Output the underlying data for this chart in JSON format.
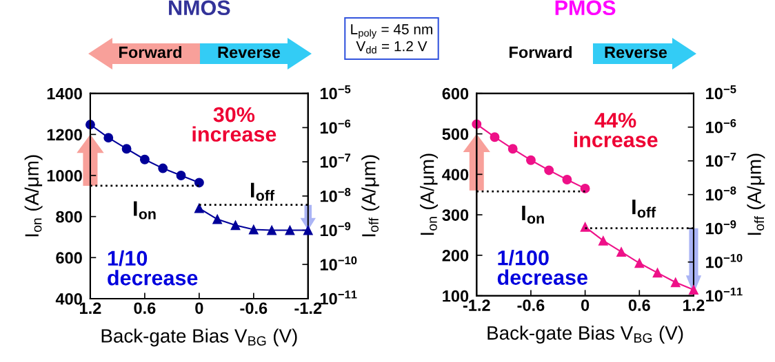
{
  "chart_data": [
    {
      "type": "line",
      "title": "NMOS",
      "xlabel": "Back-gate Bias V$_{BG}$ (V)",
      "ylabel": "I$_{on}$ (A/μm)",
      "y2label": "I$_{off}$ (A/μm)",
      "log": "y2",
      "xlim": [
        1.2,
        -1.2
      ],
      "xticks": [
        1.2,
        0.6,
        0,
        -0.6,
        -1.2
      ],
      "ylim": [
        400,
        1400
      ],
      "yticks": [
        400,
        600,
        800,
        1000,
        1200,
        1400
      ],
      "y2lim": [
        1e-11,
        1e-05
      ],
      "y2ticks": [
        {
          "value": 1e-11,
          "label": "10$^{−11}$"
        },
        {
          "value": 1e-10,
          "label": "10$^{−10}$"
        },
        {
          "value": 1e-09,
          "label": "10$^{−9}$"
        },
        {
          "value": 1e-08,
          "label": "10$^{−8}$"
        },
        {
          "value": 1e-07,
          "label": "10$^{−7}$"
        },
        {
          "value": 1e-06,
          "label": "10$^{−6}$"
        },
        {
          "value": 1e-05,
          "label": "10$^{−5}$"
        }
      ],
      "series": [
        {
          "color": "#000099",
          "marker": "circle",
          "axis": "y",
          "x": [
            1.2,
            1.0,
            0.8,
            0.6,
            0.4,
            0.2,
            0
          ],
          "values": [
            1248,
            1184,
            1130,
            1078,
            1035,
            1000,
            965
          ]
        },
        {
          "color": "#000099",
          "marker": "triangle",
          "axis": "y2",
          "x": [
            0,
            -0.2,
            -0.4,
            -0.6,
            -0.8,
            -1.0,
            -1.2
          ],
          "values": [
            4.4e-09,
            2.1e-09,
            1.4e-09,
            1.05e-09,
            1e-09,
            1e-09,
            1e-09
          ]
        },
        {
          "color": "#000000",
          "marker": "none",
          "line_style": "dotted",
          "axis": "y",
          "x": [
            1.2,
            0
          ],
          "values": [
            950,
            950
          ]
        },
        {
          "color": "#000000",
          "marker": "none",
          "line_style": "dotted",
          "axis": "y2",
          "x": [
            0,
            -1.2
          ],
          "values": [
            5.5e-09,
            5.5e-09
          ]
        }
      ],
      "annotations": [
        "30%\nincrease",
        "I$_{on}$",
        "I$_{off}$",
        "1/10\ndecrease",
        "Forward",
        "Reverse",
        "L$_{poly}$ = 45 nm\nV$_{dd}$ = 1.2 V"
      ]
    },
    {
      "type": "line",
      "title": "PMOS",
      "xlabel": "Back-gate Bias V$_{BG}$ (V)",
      "ylabel": "I$_{on}$ (A/μm)",
      "y2label": "I$_{off}$ (A/μm)",
      "log": "y2",
      "xlim": [
        -1.2,
        1.2
      ],
      "xticks": [
        -1.2,
        -0.6,
        0,
        0.6,
        1.2
      ],
      "ylim": [
        100,
        600
      ],
      "yticks": [
        100,
        200,
        300,
        400,
        500,
        600
      ],
      "y2lim": [
        1e-11,
        1e-05
      ],
      "y2ticks": [
        {
          "value": 1e-11,
          "label": "10$^{−11}$"
        },
        {
          "value": 1e-10,
          "label": "10$^{−10}$"
        },
        {
          "value": 1e-09,
          "label": "10$^{−9}$"
        },
        {
          "value": 1e-08,
          "label": "10$^{−8}$"
        },
        {
          "value": 1e-07,
          "label": "10$^{−7}$"
        },
        {
          "value": 1e-06,
          "label": "10$^{−6}$"
        },
        {
          "value": 1e-05,
          "label": "10$^{−5}$"
        }
      ],
      "series": [
        {
          "color": "#ee1188",
          "marker": "circle",
          "axis": "y",
          "x": [
            -1.2,
            -1.0,
            -0.8,
            -0.6,
            -0.4,
            -0.2,
            0
          ],
          "values": [
            524,
            492,
            463,
            435,
            410,
            387,
            365
          ]
        },
        {
          "color": "#ee1188",
          "marker": "triangle",
          "axis": "y2",
          "x": [
            0,
            0.2,
            0.4,
            0.6,
            0.8,
            1.0,
            1.2
          ],
          "values": [
            1.1e-09,
            4.3e-10,
            2e-10,
            9.3e-11,
            4.8e-11,
            2.5e-11,
            1.5e-11
          ]
        },
        {
          "color": "#000000",
          "marker": "none",
          "line_style": "dotted",
          "axis": "y",
          "x": [
            -1.2,
            0
          ],
          "values": [
            358,
            358
          ]
        },
        {
          "color": "#000000",
          "marker": "none",
          "line_style": "dotted",
          "axis": "y2",
          "x": [
            0,
            1.2
          ],
          "values": [
            1e-09,
            1e-09
          ]
        }
      ],
      "annotations": [
        "44%\nincrease",
        "I$_{on}$",
        "I$_{off}$",
        "1/100\ndecrease",
        "Forward",
        "Reverse"
      ]
    }
  ]
}
